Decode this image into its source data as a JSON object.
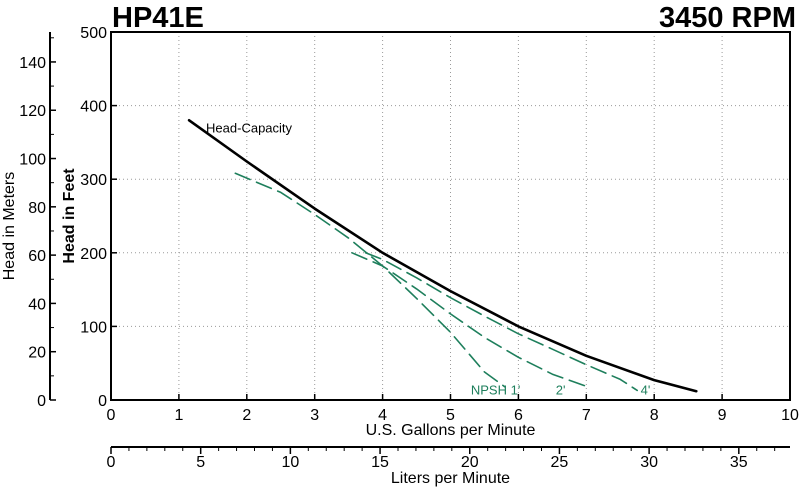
{
  "title_left": "HP41E",
  "title_right": "3450 RPM",
  "chart_data": {
    "type": "line",
    "xlabel": "U.S. Gallons per Minute",
    "ylabel": "Head in Feet",
    "xlim": [
      0,
      10
    ],
    "ylim": [
      0,
      500
    ],
    "x_ticks": [
      0,
      1,
      2,
      3,
      4,
      5,
      6,
      7,
      8,
      9,
      10
    ],
    "y_ticks": [
      0,
      100,
      200,
      300,
      400,
      500
    ],
    "grid": true,
    "secondary_y": {
      "label": "Head in Meters",
      "ticks": [
        0,
        20,
        40,
        60,
        80,
        100,
        120,
        140
      ]
    },
    "secondary_x": {
      "label": "Liters per Minute",
      "ticks": [
        0,
        5,
        10,
        15,
        20,
        25,
        30,
        35
      ]
    },
    "series": [
      {
        "name": "Head-Capacity",
        "color": "#000000",
        "style": "solid",
        "x": [
          1.15,
          2.0,
          3.0,
          4.0,
          5.0,
          6.0,
          7.0,
          8.0,
          8.62
        ],
        "y": [
          380,
          324,
          260,
          200,
          148,
          100,
          60,
          27,
          12
        ]
      },
      {
        "name": "NPSH 1'",
        "color": "#1e7f5c",
        "style": "dashed",
        "x": [
          1.83,
          2.5,
          3.0,
          3.5,
          4.0,
          4.5,
          5.0,
          5.5,
          5.8
        ],
        "y": [
          308,
          282,
          252,
          220,
          182,
          138,
          92,
          38,
          18
        ]
      },
      {
        "name": "2'",
        "color": "#1e7f5c",
        "style": "dashed",
        "x": [
          3.55,
          4.0,
          4.5,
          5.0,
          5.5,
          6.0,
          6.5,
          7.05
        ],
        "y": [
          200,
          182,
          151,
          117,
          85,
          58,
          35,
          17
        ]
      },
      {
        "name": "4'",
        "color": "#1e7f5c",
        "style": "dashed",
        "x": [
          3.75,
          4.0,
          4.5,
          5.0,
          5.5,
          6.0,
          6.5,
          7.0,
          7.5,
          7.75
        ],
        "y": [
          200,
          191,
          166,
          139,
          114,
          90,
          69,
          48,
          28,
          13
        ]
      }
    ],
    "annotations": [
      {
        "text": "Head-Capacity",
        "x": 1.4,
        "y": 370
      },
      {
        "text": "NPSH 1'",
        "x": 5.3,
        "y": 14
      },
      {
        "text": "2'",
        "x": 6.55,
        "y": 14
      },
      {
        "text": "4'",
        "x": 7.8,
        "y": 14
      }
    ]
  }
}
